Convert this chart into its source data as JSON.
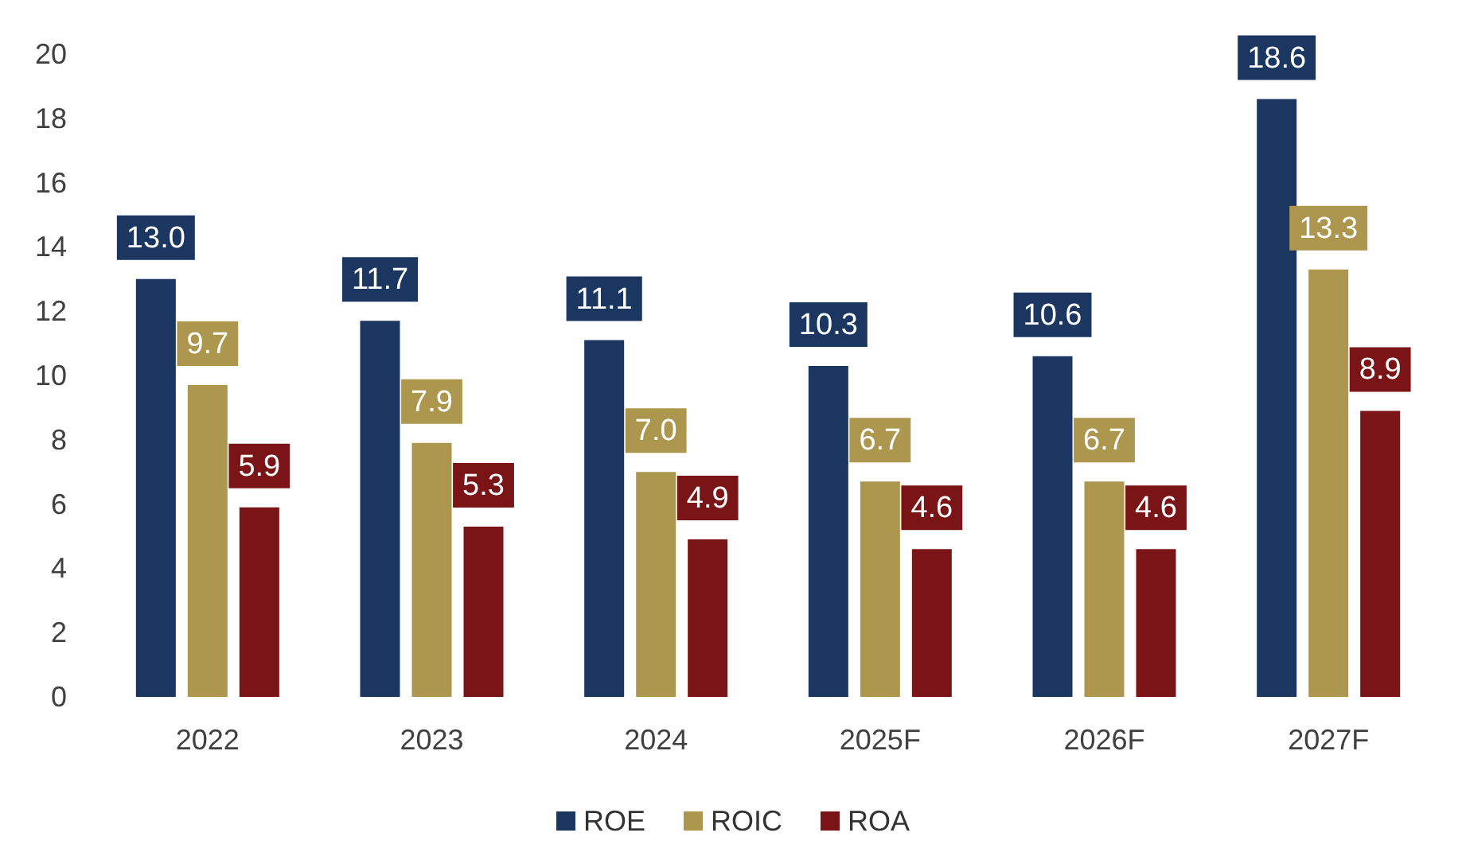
{
  "chart_data": {
    "type": "bar",
    "categories": [
      "2022",
      "2023",
      "2024",
      "2025F",
      "2026F",
      "2027F"
    ],
    "series": [
      {
        "name": "ROE",
        "color": "#1b3660",
        "values": [
          13.0,
          11.7,
          11.1,
          10.3,
          10.6,
          18.6
        ],
        "value_labels": [
          "13.0",
          "11.7",
          "11.1",
          "10.3",
          "10.6",
          "18.6"
        ]
      },
      {
        "name": "ROIC",
        "color": "#ad974f",
        "values": [
          9.7,
          7.9,
          7.0,
          6.7,
          6.7,
          13.3
        ],
        "value_labels": [
          "9.7",
          "7.9",
          "7.0",
          "6.7",
          "6.7",
          "13.3"
        ]
      },
      {
        "name": "ROA",
        "color": "#7b1416",
        "values": [
          5.9,
          5.3,
          4.9,
          4.6,
          4.6,
          8.9
        ],
        "value_labels": [
          "5.9",
          "5.3",
          "4.9",
          "4.6",
          "4.6",
          "8.9"
        ]
      }
    ],
    "ylim": [
      0,
      20
    ],
    "yticks": [
      0,
      2,
      4,
      6,
      8,
      10,
      12,
      14,
      16,
      18,
      20
    ],
    "grid": false,
    "legend": "bottom"
  }
}
